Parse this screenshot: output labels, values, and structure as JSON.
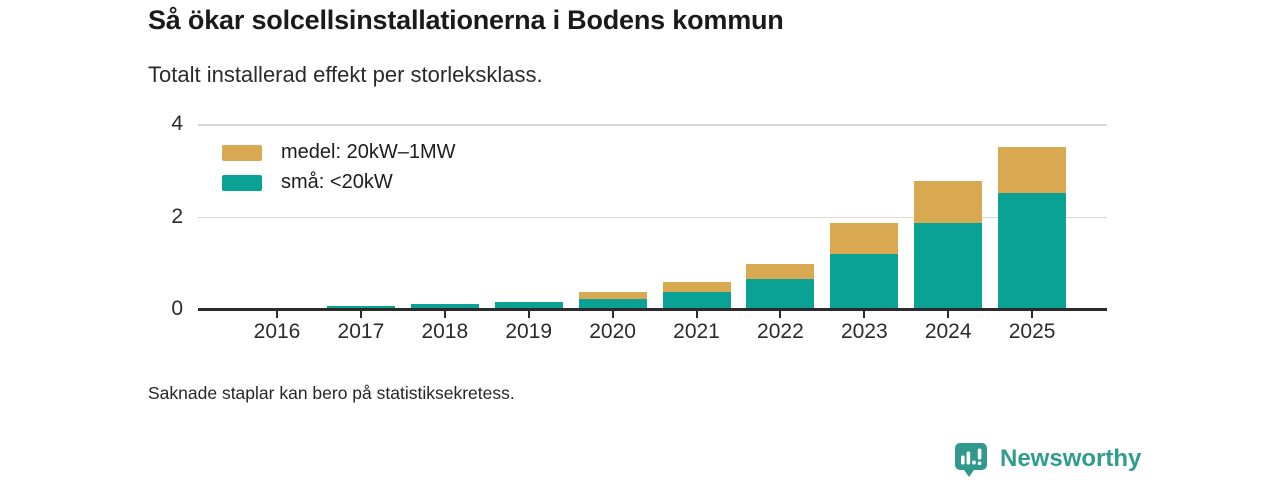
{
  "header": {
    "title": "Så ökar solcellsinstallationerna i Bodens kommun",
    "subtitle": "Totalt installerad effekt per storleksklass."
  },
  "chart_data": {
    "type": "bar",
    "stacked": true,
    "title": "Så ökar solcellsinstallationerna i Bodens kommun",
    "subtitle": "Totalt installerad effekt per storleksklass.",
    "categories": [
      "2016",
      "2017",
      "2018",
      "2019",
      "2020",
      "2021",
      "2022",
      "2023",
      "2024",
      "2025"
    ],
    "series": [
      {
        "key": "medel",
        "name": "medel: 20kW–1MW",
        "color": "#d9a951",
        "values": [
          0,
          0,
          0,
          0,
          0.15,
          0.22,
          0.33,
          0.67,
          0.9,
          1.0
        ]
      },
      {
        "key": "sma",
        "name": "små: <20kW",
        "color": "#0ba296",
        "values": [
          0,
          0.06,
          0.1,
          0.16,
          0.22,
          0.36,
          0.65,
          1.2,
          1.87,
          2.5
        ]
      }
    ],
    "stack_order_bottom_to_top": [
      "sma",
      "medel"
    ],
    "ylim": [
      0,
      4
    ],
    "yticks": [
      0,
      2,
      4
    ],
    "xlabel": "",
    "ylabel": "",
    "grid": true,
    "legend_position": "top-left",
    "missing_categories": [
      "2016"
    ]
  },
  "footer": {
    "note": "Saknade staplar kan bero på statistiksekretess.",
    "brand": "Newsworthy"
  },
  "colors": {
    "small_series": "#0ba296",
    "medium_series": "#d9a951",
    "axis": "#2b2b2b",
    "gridline": "#d8d8d8",
    "logo": "#2f9c8e"
  }
}
